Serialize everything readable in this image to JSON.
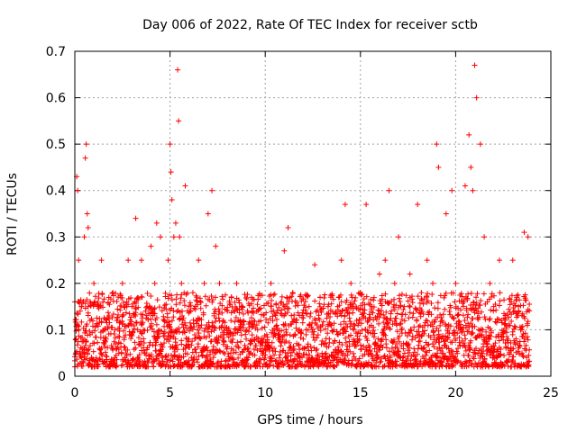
{
  "chart_data": {
    "type": "scatter",
    "title": "Day 006 of 2022, Rate Of TEC Index for receiver sctb",
    "xlabel": "GPS time / hours",
    "ylabel": "ROTI / TECUs",
    "xlim": [
      0,
      25
    ],
    "ylim": [
      0,
      0.7
    ],
    "x_ticks": [
      0,
      5,
      10,
      15,
      20,
      25
    ],
    "y_ticks": [
      0,
      0.1,
      0.2,
      0.3,
      0.4,
      0.5,
      0.6,
      0.7
    ],
    "grid": true,
    "marker": "plus",
    "color": "#ff0000",
    "x": [
      0.05,
      0.1,
      0.15,
      0.2,
      0.35,
      0.5,
      0.55,
      0.6,
      0.65,
      0.7,
      0.8,
      1.0,
      1.2,
      1.4,
      1.6,
      1.8,
      2.0,
      2.2,
      2.5,
      2.8,
      3.0,
      3.2,
      3.3,
      3.5,
      3.8,
      4.0,
      4.2,
      4.3,
      4.5,
      4.7,
      4.9,
      5.0,
      5.05,
      5.1,
      5.2,
      5.3,
      5.4,
      5.45,
      5.5,
      5.6,
      5.8,
      6.0,
      6.2,
      6.5,
      6.8,
      7.0,
      7.2,
      7.4,
      7.6,
      7.8,
      8.0,
      8.2,
      8.5,
      8.8,
      9.0,
      9.3,
      9.6,
      10.0,
      10.3,
      10.6,
      11.0,
      11.2,
      11.3,
      11.5,
      11.8,
      12.0,
      12.3,
      12.6,
      13.0,
      13.3,
      13.6,
      13.8,
      14.0,
      14.2,
      14.5,
      14.8,
      15.0,
      15.3,
      15.6,
      16.0,
      16.3,
      16.5,
      16.8,
      17.0,
      17.3,
      17.6,
      18.0,
      18.2,
      18.5,
      18.8,
      19.0,
      19.1,
      19.3,
      19.5,
      19.8,
      20.0,
      20.3,
      20.5,
      20.7,
      20.8,
      20.9,
      21.0,
      21.1,
      21.3,
      21.5,
      21.8,
      22.0,
      22.3,
      22.6,
      23.0,
      23.3,
      23.6,
      23.8
    ],
    "y": [
      0.05,
      0.43,
      0.4,
      0.25,
      0.15,
      0.3,
      0.47,
      0.5,
      0.35,
      0.32,
      0.12,
      0.2,
      0.15,
      0.25,
      0.1,
      0.13,
      0.18,
      0.12,
      0.2,
      0.25,
      0.15,
      0.34,
      0.1,
      0.25,
      0.15,
      0.28,
      0.2,
      0.33,
      0.3,
      0.12,
      0.25,
      0.5,
      0.44,
      0.38,
      0.3,
      0.33,
      0.66,
      0.55,
      0.3,
      0.2,
      0.41,
      0.15,
      0.18,
      0.25,
      0.2,
      0.35,
      0.4,
      0.28,
      0.2,
      0.12,
      0.09,
      0.12,
      0.2,
      0.15,
      0.08,
      0.14,
      0.1,
      0.06,
      0.2,
      0.1,
      0.27,
      0.32,
      0.17,
      0.12,
      0.1,
      0.08,
      0.15,
      0.24,
      0.11,
      0.15,
      0.1,
      0.15,
      0.25,
      0.37,
      0.2,
      0.12,
      0.18,
      0.37,
      0.15,
      0.22,
      0.25,
      0.4,
      0.2,
      0.3,
      0.15,
      0.22,
      0.37,
      0.18,
      0.25,
      0.2,
      0.5,
      0.45,
      0.12,
      0.35,
      0.4,
      0.2,
      0.1,
      0.41,
      0.52,
      0.45,
      0.4,
      0.67,
      0.6,
      0.5,
      0.3,
      0.2,
      0.15,
      0.25,
      0.12,
      0.25,
      0.15,
      0.31,
      0.3
    ],
    "background_density": {
      "x_from": 0,
      "x_to": 23.9,
      "x_step": 0.035,
      "y_base": 0.02,
      "y_spread": 0.16,
      "points_per_step": 4
    }
  }
}
